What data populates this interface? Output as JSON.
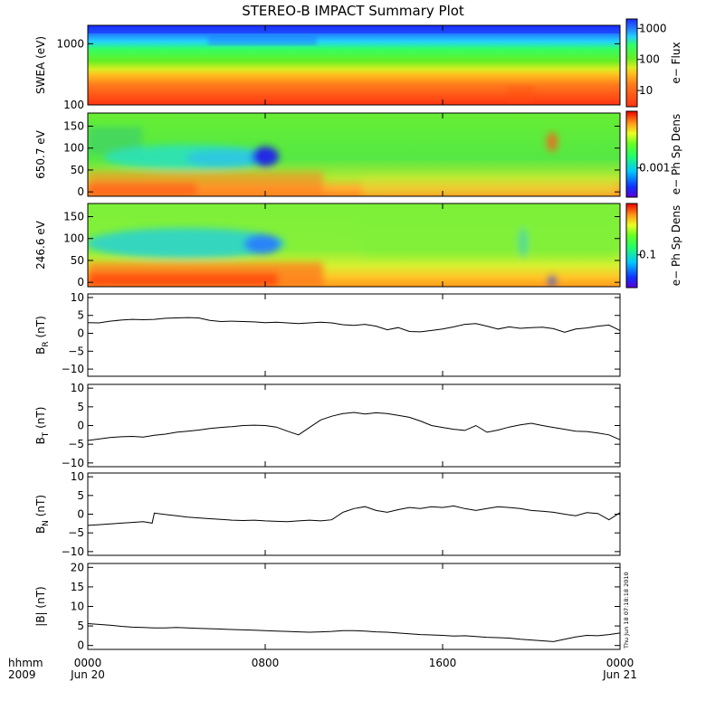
{
  "title": "STEREO-B IMPACT Summary Plot",
  "time_axis": {
    "row1_label": "hhmm",
    "row2_label": "2009",
    "ticks": [
      {
        "hours": 0,
        "time": "0000",
        "date": "Jun 20"
      },
      {
        "hours": 8,
        "time": "0800",
        "date": ""
      },
      {
        "hours": 16,
        "time": "1600",
        "date": ""
      },
      {
        "hours": 24,
        "time": "0000",
        "date": "Jun 21"
      }
    ],
    "range_hours": [
      0,
      24
    ]
  },
  "timestamp_note": "Thu Jun 18 07:18:18 2010",
  "chart_data": [
    {
      "type": "heatmap",
      "ylabel": "SWEA (eV)",
      "yscale": "log",
      "ylim": [
        100,
        2000
      ],
      "yticks": [
        {
          "value": 100,
          "label": "100"
        },
        {
          "value": 1000,
          "label": "1000"
        }
      ],
      "colorbar": {
        "label": "e− Flux",
        "scale": "log",
        "range": [
          3,
          2000
        ],
        "ticks": [
          {
            "value": 10,
            "label": "10"
          },
          {
            "value": 100,
            "label": "100"
          },
          {
            "value": 1000,
            "label": "1000"
          }
        ]
      }
    },
    {
      "type": "heatmap",
      "ylabel": "650.7 eV",
      "ylim": [
        -10,
        180
      ],
      "yticks": [
        {
          "value": 0,
          "label": "0"
        },
        {
          "value": 50,
          "label": "50"
        },
        {
          "value": 100,
          "label": "100"
        },
        {
          "value": 150,
          "label": "150"
        }
      ],
      "colorbar": {
        "label": "e− Ph Sp Dens",
        "scale": "log",
        "ticks": [
          {
            "value": 0.001,
            "label": "0.001"
          }
        ]
      }
    },
    {
      "type": "heatmap",
      "ylabel": "246.6 eV",
      "ylim": [
        -10,
        180
      ],
      "yticks": [
        {
          "value": 0,
          "label": "0"
        },
        {
          "value": 50,
          "label": "50"
        },
        {
          "value": 100,
          "label": "100"
        },
        {
          "value": 150,
          "label": "150"
        }
      ],
      "colorbar": {
        "label": "e− Ph Sp Dens",
        "scale": "log",
        "ticks": [
          {
            "value": 0.1,
            "label": "0.1"
          }
        ]
      }
    },
    {
      "type": "line",
      "ylabel_main": "B",
      "ylabel_sub": "R",
      "ylabel_unit": " (nT)",
      "ylim": [
        -12,
        11
      ],
      "yticks": [
        {
          "value": -10,
          "label": "−10"
        },
        {
          "value": -5,
          "label": "−5"
        },
        {
          "value": 0,
          "label": "0"
        },
        {
          "value": 5,
          "label": "5"
        },
        {
          "value": 10,
          "label": "10"
        }
      ],
      "x_hours": [
        0,
        0.5,
        1,
        1.5,
        2,
        2.5,
        3,
        3.5,
        4,
        4.5,
        5,
        5.5,
        6,
        6.5,
        7,
        7.5,
        8,
        8.5,
        9,
        9.5,
        10,
        10.5,
        11,
        11.5,
        12,
        12.5,
        13,
        13.5,
        14,
        14.5,
        15,
        15.5,
        16,
        16.5,
        17,
        17.5,
        18,
        18.5,
        19,
        19.5,
        20,
        20.5,
        21,
        21.5,
        22,
        22.5,
        23,
        23.5,
        24
      ],
      "y": [
        3.0,
        2.9,
        3.4,
        3.7,
        3.9,
        3.8,
        3.9,
        4.2,
        4.3,
        4.4,
        4.3,
        3.6,
        3.3,
        3.4,
        3.3,
        3.2,
        3.0,
        3.1,
        2.9,
        2.7,
        2.9,
        3.1,
        2.9,
        2.4,
        2.2,
        2.5,
        2.0,
        1.0,
        1.6,
        0.5,
        0.4,
        0.8,
        1.2,
        1.8,
        2.5,
        2.7,
        2.0,
        1.2,
        1.8,
        1.4,
        1.6,
        1.7,
        1.3,
        0.3,
        1.2,
        1.5,
        2.0,
        2.3,
        0.8
      ]
    },
    {
      "type": "line",
      "ylabel_main": "B",
      "ylabel_sub": "T",
      "ylabel_unit": " (nT)",
      "ylim": [
        -11,
        11
      ],
      "yticks": [
        {
          "value": -10,
          "label": "−10"
        },
        {
          "value": -5,
          "label": "−5"
        },
        {
          "value": 0,
          "label": "0"
        },
        {
          "value": 5,
          "label": "5"
        },
        {
          "value": 10,
          "label": "10"
        }
      ],
      "x_hours": [
        0,
        0.5,
        1,
        1.5,
        2,
        2.5,
        3,
        3.5,
        4,
        4.5,
        5,
        5.5,
        6,
        6.5,
        7,
        7.5,
        8,
        8.5,
        9,
        9.5,
        10,
        10.5,
        11,
        11.5,
        12,
        12.5,
        13,
        13.5,
        14,
        14.5,
        15,
        15.5,
        16,
        16.5,
        17,
        17.5,
        18,
        18.5,
        19,
        19.5,
        20,
        20.5,
        21,
        21.5,
        22,
        22.5,
        23,
        23.5,
        24
      ],
      "y": [
        -4.0,
        -3.6,
        -3.2,
        -3.0,
        -2.9,
        -3.1,
        -2.6,
        -2.3,
        -1.8,
        -1.5,
        -1.2,
        -0.8,
        -0.5,
        -0.3,
        0.0,
        0.1,
        0.0,
        -0.4,
        -1.5,
        -2.5,
        -0.5,
        1.5,
        2.5,
        3.2,
        3.5,
        3.1,
        3.4,
        3.2,
        2.7,
        2.2,
        1.2,
        0.0,
        -0.5,
        -1.0,
        -1.3,
        0.0,
        -1.8,
        -1.2,
        -0.4,
        0.2,
        0.6,
        0.0,
        -0.5,
        -1.0,
        -1.5,
        -1.6,
        -2.0,
        -2.5,
        -3.8
      ]
    },
    {
      "type": "line",
      "ylabel_main": "B",
      "ylabel_sub": "N",
      "ylabel_unit": " (nT)",
      "ylim": [
        -11,
        11
      ],
      "yticks": [
        {
          "value": -10,
          "label": "−10"
        },
        {
          "value": -5,
          "label": "−5"
        },
        {
          "value": 0,
          "label": "0"
        },
        {
          "value": 5,
          "label": "5"
        },
        {
          "value": 10,
          "label": "10"
        }
      ],
      "x_hours": [
        0,
        0.5,
        1,
        1.5,
        2,
        2.5,
        2.9,
        3.0,
        3.5,
        4,
        4.5,
        5,
        5.5,
        6,
        6.5,
        7,
        7.5,
        8,
        8.5,
        9,
        9.5,
        10,
        10.5,
        11,
        11.5,
        12,
        12.5,
        13,
        13.5,
        14,
        14.5,
        15,
        15.5,
        16,
        16.5,
        17,
        17.5,
        18,
        18.5,
        19,
        19.5,
        20,
        20.5,
        21,
        21.5,
        22,
        22.5,
        23,
        23.5,
        24
      ],
      "y": [
        -3.0,
        -2.8,
        -2.6,
        -2.4,
        -2.2,
        -2.0,
        -2.4,
        0.3,
        -0.1,
        -0.4,
        -0.8,
        -1.0,
        -1.2,
        -1.4,
        -1.6,
        -1.7,
        -1.6,
        -1.8,
        -1.9,
        -2.0,
        -1.8,
        -1.6,
        -1.8,
        -1.5,
        0.5,
        1.5,
        2.0,
        1.0,
        0.5,
        1.2,
        1.8,
        1.5,
        2.0,
        1.8,
        2.2,
        1.5,
        1.0,
        1.5,
        2.0,
        1.8,
        1.5,
        1.0,
        0.8,
        0.5,
        0.0,
        -0.4,
        0.4,
        0.2,
        -1.5,
        0.4
      ]
    },
    {
      "type": "line",
      "ylabel": "|B| (nT)",
      "ylim": [
        -1,
        21
      ],
      "yticks": [
        {
          "value": 0,
          "label": "0"
        },
        {
          "value": 5,
          "label": "5"
        },
        {
          "value": 10,
          "label": "10"
        },
        {
          "value": 15,
          "label": "15"
        },
        {
          "value": 20,
          "label": "20"
        }
      ],
      "x_hours": [
        0,
        0.5,
        1,
        1.5,
        2,
        2.5,
        3,
        3.5,
        4,
        4.5,
        5,
        5.5,
        6,
        6.5,
        7,
        7.5,
        8,
        8.5,
        9,
        9.5,
        10,
        10.5,
        11,
        11.5,
        12,
        12.5,
        13,
        13.5,
        14,
        14.5,
        15,
        15.5,
        16,
        16.5,
        17,
        17.5,
        18,
        18.5,
        19,
        19.5,
        20,
        20.5,
        21,
        21.5,
        22,
        22.5,
        23,
        23.5,
        24
      ],
      "y": [
        5.6,
        5.4,
        5.2,
        4.9,
        4.7,
        4.6,
        4.5,
        4.5,
        4.6,
        4.5,
        4.4,
        4.3,
        4.2,
        4.1,
        4.0,
        3.9,
        3.8,
        3.7,
        3.6,
        3.5,
        3.4,
        3.5,
        3.6,
        3.8,
        3.8,
        3.7,
        3.5,
        3.4,
        3.2,
        3.0,
        2.8,
        2.7,
        2.6,
        2.4,
        2.5,
        2.3,
        2.1,
        2.0,
        1.9,
        1.6,
        1.4,
        1.2,
        1.0,
        1.6,
        2.2,
        2.6,
        2.5,
        2.8,
        3.2
      ]
    }
  ]
}
